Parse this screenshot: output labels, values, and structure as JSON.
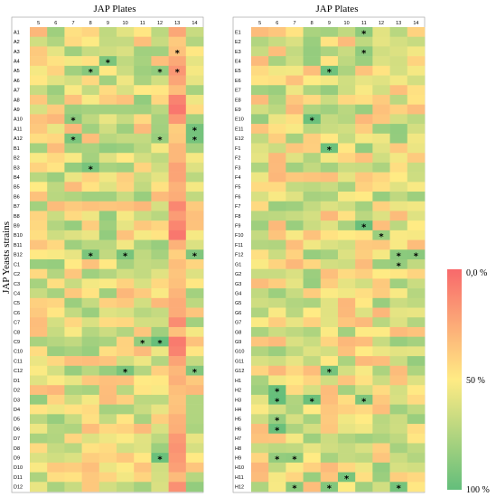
{
  "chart_data": {
    "type": "heatmap",
    "ylabel": "JAP Yeasts strains",
    "colorbar": {
      "labels": [
        "0,0 %",
        "50 %",
        "100 %"
      ],
      "colors": [
        "#f8696b",
        "#ffeb84",
        "#63be7b"
      ]
    },
    "panels": [
      {
        "title": "JAP Plates",
        "columns": [
          "5",
          "6",
          "7",
          "8",
          "9",
          "10",
          "11",
          "12",
          "13",
          "14"
        ],
        "rows": [
          "A1",
          "A2",
          "A3",
          "A4",
          "A5",
          "A6",
          "A7",
          "A8",
          "A9",
          "A10",
          "A11",
          "A12",
          "B1",
          "B2",
          "B3",
          "B4",
          "B5",
          "B6",
          "B7",
          "B8",
          "B9",
          "B10",
          "B11",
          "B12",
          "C1",
          "C2",
          "C3",
          "C4",
          "C5",
          "C6",
          "C7",
          "C8",
          "C9",
          "C10",
          "C11",
          "C12",
          "D1",
          "D2",
          "D3",
          "D4",
          "D5",
          "D6",
          "D7",
          "D8",
          "D9",
          "D10",
          "D11",
          "D12"
        ],
        "stars": [
          [
            "A3",
            "13"
          ],
          [
            "A4",
            "9"
          ],
          [
            "A5",
            "8"
          ],
          [
            "A5",
            "12"
          ],
          [
            "A5",
            "13"
          ],
          [
            "A10",
            "7"
          ],
          [
            "A11",
            "14"
          ],
          [
            "A12",
            "7"
          ],
          [
            "A12",
            "12"
          ],
          [
            "A12",
            "14"
          ],
          [
            "B3",
            "8"
          ],
          [
            "B12",
            "8"
          ],
          [
            "B12",
            "10"
          ],
          [
            "B12",
            "14"
          ],
          [
            "C9",
            "11"
          ],
          [
            "C9",
            "12"
          ],
          [
            "C12",
            "10"
          ],
          [
            "C12",
            "14"
          ],
          [
            "D9",
            "12"
          ]
        ]
      },
      {
        "title": "JAP Plates",
        "columns": [
          "5",
          "6",
          "7",
          "8",
          "9",
          "10",
          "11",
          "12",
          "13",
          "14"
        ],
        "rows": [
          "E1",
          "E2",
          "E3",
          "E4",
          "E5",
          "E6",
          "E7",
          "E8",
          "E9",
          "E10",
          "E11",
          "E12",
          "F1",
          "F2",
          "F3",
          "F4",
          "F5",
          "F6",
          "F7",
          "F8",
          "F9",
          "F10",
          "F11",
          "F12",
          "G1",
          "G2",
          "G3",
          "G4",
          "G5",
          "G6",
          "G7",
          "G8",
          "G9",
          "G10",
          "G11",
          "G12",
          "H1",
          "H2",
          "H3",
          "H4",
          "H5",
          "H6",
          "H7",
          "H8",
          "H9",
          "H10",
          "H11",
          "H12"
        ],
        "stars": [
          [
            "E1",
            "11"
          ],
          [
            "E3",
            "11"
          ],
          [
            "E5",
            "9"
          ],
          [
            "E10",
            "8"
          ],
          [
            "F1",
            "9"
          ],
          [
            "F9",
            "11"
          ],
          [
            "F10",
            "12"
          ],
          [
            "F12",
            "13"
          ],
          [
            "F12",
            "14"
          ],
          [
            "G1",
            "13"
          ],
          [
            "G12",
            "9"
          ],
          [
            "H2",
            "6"
          ],
          [
            "H3",
            "6"
          ],
          [
            "H3",
            "8"
          ],
          [
            "H3",
            "11"
          ],
          [
            "H5",
            "6"
          ],
          [
            "H6",
            "6"
          ],
          [
            "H9",
            "6"
          ],
          [
            "H9",
            "7"
          ],
          [
            "H11",
            "10"
          ],
          [
            "H12",
            "7"
          ],
          [
            "H12",
            "9"
          ],
          [
            "H12",
            "13"
          ]
        ]
      }
    ]
  }
}
